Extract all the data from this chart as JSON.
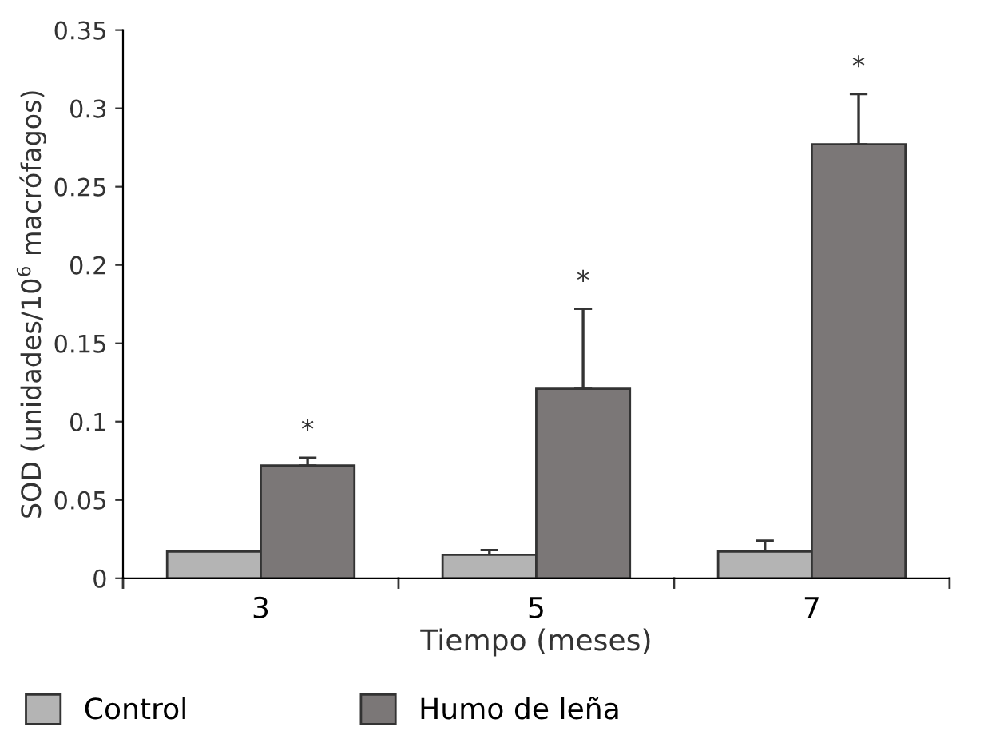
{
  "chart_data": {
    "type": "bar",
    "xlabel": "Tiempo (meses)",
    "ylabel": "SOD (unidades/10$^{6}$ macrófagos)",
    "categories": [
      "3",
      "5",
      "7"
    ],
    "series": [
      {
        "name": "Control",
        "color": "#b4b4b4",
        "values": [
          0.017,
          0.015,
          0.017
        ],
        "errors": [
          null,
          [
            0.015,
            0.018
          ],
          [
            0.017,
            0.024
          ]
        ]
      },
      {
        "name": "Humo de leña",
        "color": "#7b7777",
        "values": [
          0.072,
          0.121,
          0.277
        ],
        "errors": [
          [
            0.072,
            0.077
          ],
          [
            0.121,
            0.172
          ],
          [
            0.277,
            0.309
          ]
        ]
      }
    ],
    "annotations": [
      "*",
      "*",
      "*"
    ],
    "ylim": [
      0,
      0.35
    ],
    "yticks": [
      0,
      0.05,
      0.1,
      0.15,
      0.2,
      0.25,
      0.3,
      0.35
    ],
    "grid": false,
    "legend": "bottom left"
  }
}
